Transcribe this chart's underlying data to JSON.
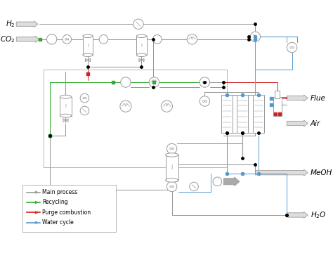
{
  "bg_color": "#ffffff",
  "main_color": "#999999",
  "recycle_color": "#33aa33",
  "purge_color": "#cc2222",
  "water_color": "#5599cc",
  "lw_main": 0.8,
  "lw_rec": 0.8,
  "lw_purge": 0.8,
  "lw_water": 0.8,
  "legend_items": [
    {
      "label": "Main process",
      "color": "#999999"
    },
    {
      "label": "Recycling",
      "color": "#33aa33"
    },
    {
      "label": "Purge combustion",
      "color": "#cc2222"
    },
    {
      "label": "Water cycle",
      "color": "#5599cc"
    }
  ]
}
